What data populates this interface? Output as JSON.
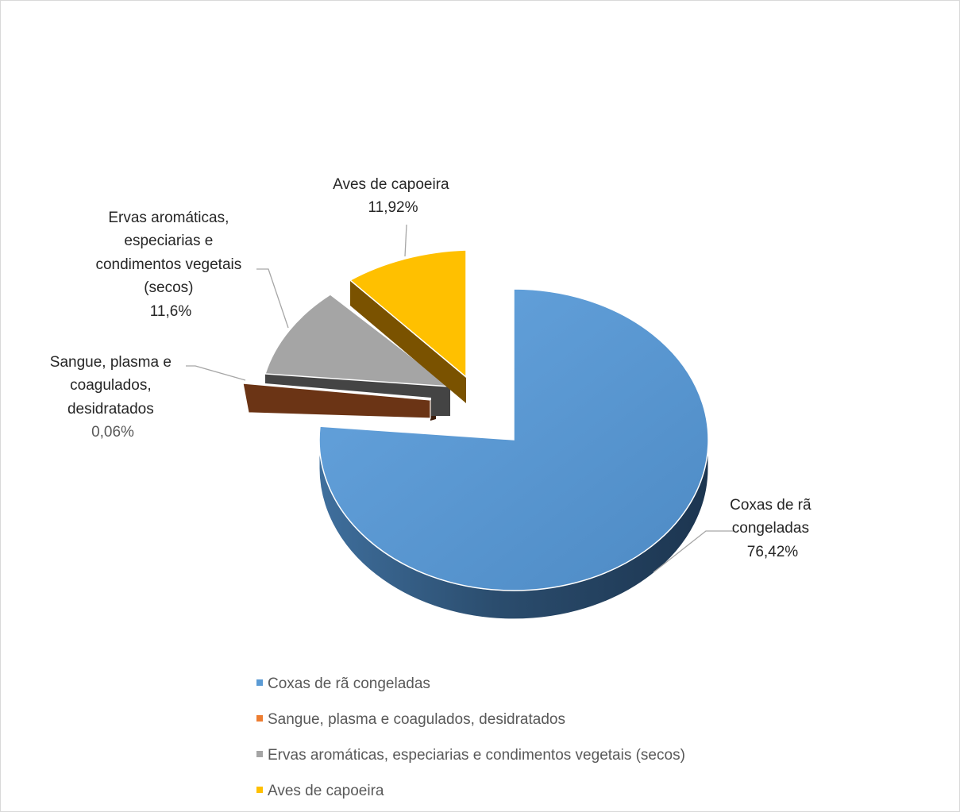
{
  "chart_data": {
    "type": "pie",
    "style": "3d-exploded",
    "title": "",
    "slices": [
      {
        "name": "Coxas de rã congeladas",
        "value": 76.42,
        "value_label": "76,42%",
        "label_lines": [
          "Coxas de rã",
          "congeladas"
        ],
        "color": "#5b9bd5"
      },
      {
        "name": "Sangue, plasma e coagulados, desidratados",
        "value": 0.06,
        "value_label": "0,06%",
        "label_lines": [
          "Sangue, plasma e",
          "coagulados,",
          "desidratados"
        ],
        "color": "#ed7d31",
        "drawn_color": "#6b3415"
      },
      {
        "name": "Ervas aromáticas, especiarias e condimentos vegetais (secos)",
        "value": 11.6,
        "value_label": "11,6%",
        "label_lines": [
          "Ervas aromáticas,",
          "especiarias e",
          "condimentos vegetais",
          "(secos)"
        ],
        "color": "#a5a5a5"
      },
      {
        "name": "Aves de capoeira",
        "value": 11.92,
        "value_label": "11,92%",
        "label_lines": [
          "Aves de capoeira"
        ],
        "color": "#ffc000"
      }
    ],
    "legend": {
      "position": "bottom",
      "items": [
        "Coxas de rã congeladas",
        "Sangue, plasma e coagulados, desidratados",
        "Ervas aromáticas, especiarias e condimentos vegetais (secos)",
        "Aves de capoeira"
      ]
    }
  }
}
